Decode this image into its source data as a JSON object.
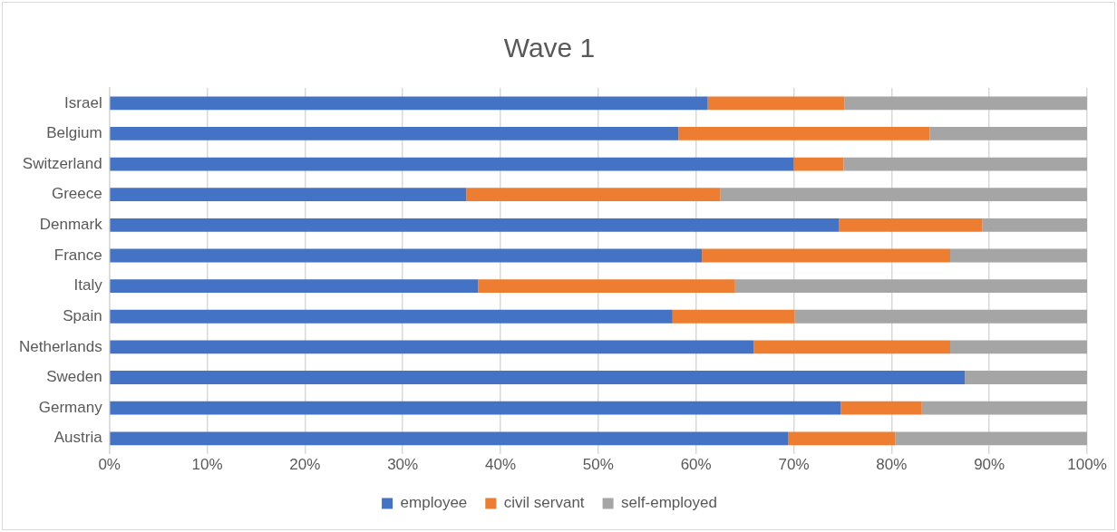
{
  "chart_data": {
    "type": "bar",
    "orientation": "horizontal",
    "stacked": true,
    "title": "Wave 1",
    "categories": [
      "Israel",
      "Belgium",
      "Switzerland",
      "Greece",
      "Denmark",
      "France",
      "Italy",
      "Spain",
      "Netherlands",
      "Sweden",
      "Germany",
      "Austria"
    ],
    "series": [
      {
        "name": "employee",
        "color": "#4472c4",
        "values": [
          61.2,
          58.2,
          70.0,
          36.5,
          74.6,
          60.6,
          37.7,
          57.6,
          65.9,
          87.5,
          74.8,
          69.4
        ]
      },
      {
        "name": "civil servant",
        "color": "#ed7d31",
        "values": [
          14.0,
          25.7,
          5.1,
          26.0,
          14.7,
          25.4,
          26.3,
          12.5,
          20.1,
          0,
          8.3,
          11.0
        ]
      },
      {
        "name": "self-employed",
        "color": "#a5a5a5",
        "values": [
          24.8,
          16.1,
          24.9,
          37.5,
          10.7,
          14.0,
          36.0,
          29.9,
          14.0,
          12.5,
          16.9,
          19.6
        ]
      }
    ],
    "xlim": [
      0,
      100
    ],
    "xticks": [
      {
        "value": 0,
        "label": "0%"
      },
      {
        "value": 10,
        "label": "10%"
      },
      {
        "value": 20,
        "label": "20%"
      },
      {
        "value": 30,
        "label": "30%"
      },
      {
        "value": 40,
        "label": "40%"
      },
      {
        "value": 50,
        "label": "50%"
      },
      {
        "value": 60,
        "label": "60%"
      },
      {
        "value": 70,
        "label": "70%"
      },
      {
        "value": 80,
        "label": "80%"
      },
      {
        "value": 90,
        "label": "90%"
      },
      {
        "value": 100,
        "label": "100%"
      }
    ],
    "grid": "x",
    "legend": "bottom"
  }
}
